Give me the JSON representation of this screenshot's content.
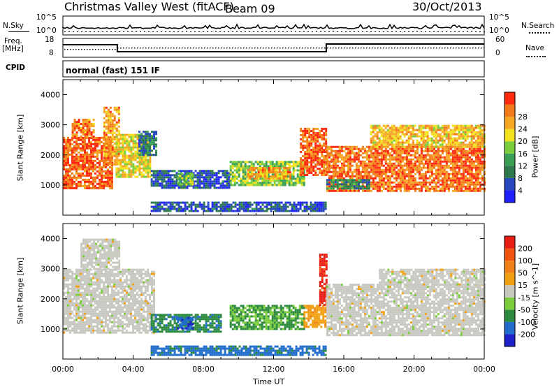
{
  "header": {
    "title": "Christmas Valley West (fitACF)",
    "beam": "Beam 09",
    "date": "30/Oct/2013"
  },
  "top_panels": {
    "nsky_label": "N.Sky",
    "nsearch_label": "N.Search",
    "nsky_ticks": [
      "10^5",
      "10^0"
    ],
    "nsearch_ticks": [
      "10^5",
      "10^0"
    ],
    "freq_label": "Freq.",
    "freq_unit": "[MHz]",
    "freq_ticks": [
      "18",
      "8"
    ],
    "nave_label": "Nave",
    "nave_ticks": [
      "60",
      "0"
    ],
    "cpid_label": "CPID",
    "cpid_text": "normal (fast) 151 IF"
  },
  "colors": {
    "power": [
      "#2020ff",
      "#2848c0",
      "#2e7a4e",
      "#3aa055",
      "#7ccd3c",
      "#f2e21c",
      "#f5a623",
      "#f27a1a",
      "#ff2a0f"
    ],
    "velocity": [
      "#1c22c8",
      "#226dcc",
      "#2b8a3e",
      "#7ccd3c",
      "#c8c8c0",
      "#f0a010",
      "#f08018",
      "#f25510",
      "#e81e14"
    ]
  },
  "chart_data": [
    {
      "type": "heatmap",
      "panel": "power",
      "ylabel": "Slant Range [km]",
      "yticks": [
        "1000",
        "2000",
        "3000",
        "4000"
      ],
      "ylim": [
        0,
        4500
      ],
      "xlim_hours": [
        0,
        24
      ],
      "colorbar_label": "Power [dB]",
      "colorbar_ticks": [
        "4",
        "8",
        "12",
        "16",
        "20",
        "24",
        "28"
      ],
      "colorbar_range": [
        0,
        32
      ],
      "regions": [
        {
          "t0": 0.0,
          "t1": 2.8,
          "r0": 900,
          "r1": 2600,
          "v": 28
        },
        {
          "t0": 0.5,
          "t1": 1.8,
          "r0": 2600,
          "r1": 3200,
          "v": 26
        },
        {
          "t0": 2.3,
          "t1": 3.2,
          "r0": 1700,
          "r1": 3600,
          "v": 24
        },
        {
          "t0": 3.0,
          "t1": 5.0,
          "r0": 1300,
          "r1": 2700,
          "v": 20
        },
        {
          "t0": 4.3,
          "t1": 5.3,
          "r0": 2000,
          "r1": 2800,
          "v": 8
        },
        {
          "t0": 5.0,
          "t1": 9.5,
          "r0": 900,
          "r1": 1500,
          "v": 6
        },
        {
          "t0": 6.5,
          "t1": 7.4,
          "r0": 1000,
          "r1": 1400,
          "v": 16
        },
        {
          "t0": 9.5,
          "t1": 13.7,
          "r0": 1000,
          "r1": 1800,
          "v": 16
        },
        {
          "t0": 10.5,
          "t1": 13.0,
          "r0": 1200,
          "r1": 1600,
          "v": 24
        },
        {
          "t0": 13.5,
          "t1": 15.0,
          "r0": 1300,
          "r1": 2900,
          "v": 28
        },
        {
          "t0": 15.0,
          "t1": 24.0,
          "r0": 800,
          "r1": 2300,
          "v": 27
        },
        {
          "t0": 17.5,
          "t1": 24.0,
          "r0": 2300,
          "r1": 3000,
          "v": 22
        },
        {
          "t0": 5.0,
          "t1": 15.0,
          "r0": 150,
          "r1": 450,
          "v": 6
        },
        {
          "t0": 15.0,
          "t1": 17.5,
          "r0": 900,
          "r1": 1200,
          "v": 10
        }
      ]
    },
    {
      "type": "heatmap",
      "panel": "velocity",
      "ylabel": "Slant Range [km]",
      "yticks": [
        "1000",
        "2000",
        "3000",
        "4000"
      ],
      "ylim": [
        0,
        4500
      ],
      "xlim_hours": [
        0,
        24
      ],
      "xticks": [
        "00:00",
        "04:00",
        "08:00",
        "12:00",
        "16:00",
        "20:00",
        "00:00"
      ],
      "xlabel": "Time UT",
      "colorbar_label": "Velocity [m s^-1]",
      "colorbar_ticks": [
        "200",
        "100",
        "50",
        "15",
        "-15",
        "-50",
        "-100",
        "-200"
      ],
      "colorbar_range": [
        -250,
        250
      ],
      "regions": [
        {
          "t0": 0.0,
          "t1": 5.2,
          "r0": 900,
          "r1": 3000,
          "v": 0
        },
        {
          "t0": 1.0,
          "t1": 3.2,
          "r0": 3000,
          "r1": 4000,
          "v": 0
        },
        {
          "t0": 5.0,
          "t1": 9.0,
          "r0": 900,
          "r1": 1500,
          "v": -120
        },
        {
          "t0": 6.5,
          "t1": 7.4,
          "r0": 1000,
          "r1": 1400,
          "v": -180
        },
        {
          "t0": 9.5,
          "t1": 13.7,
          "r0": 1000,
          "r1": 1800,
          "v": -90
        },
        {
          "t0": 13.7,
          "t1": 15.0,
          "r0": 1100,
          "r1": 1800,
          "v": 60
        },
        {
          "t0": 14.6,
          "t1": 15.0,
          "r0": 1800,
          "r1": 3500,
          "v": 210
        },
        {
          "t0": 15.0,
          "t1": 24.0,
          "r0": 800,
          "r1": 2500,
          "v": 0
        },
        {
          "t0": 18.0,
          "t1": 24.0,
          "r0": 2500,
          "r1": 3000,
          "v": 0
        },
        {
          "t0": 5.0,
          "t1": 15.0,
          "r0": 150,
          "r1": 450,
          "v": -160
        }
      ]
    }
  ]
}
